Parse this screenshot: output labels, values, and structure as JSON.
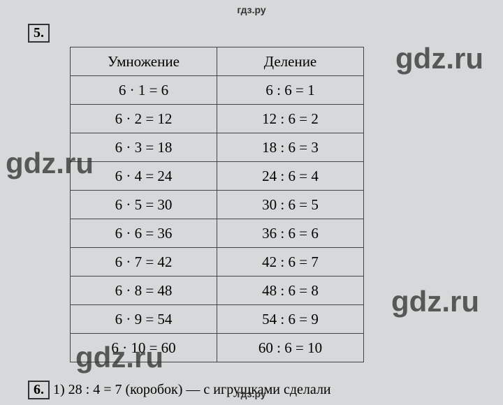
{
  "site": "гдз.ру",
  "watermark": "gdz.ru",
  "problem5": {
    "number": "5.",
    "headers": {
      "left": "Умножение",
      "right": "Деление"
    },
    "rows": [
      {
        "mult": "6 · 1 = 6",
        "div": "6 : 6 = 1"
      },
      {
        "mult": "6 · 2 = 12",
        "div": "12 : 6 = 2"
      },
      {
        "mult": "6 · 3 = 18",
        "div": "18 : 6 = 3"
      },
      {
        "mult": "6 · 4 = 24",
        "div": "24 : 6 = 4"
      },
      {
        "mult": "6 · 5 = 30",
        "div": "30 : 6 = 5"
      },
      {
        "mult": "6 · 6 = 36",
        "div": "36 : 6 = 6"
      },
      {
        "mult": "6 · 7 = 42",
        "div": "42 : 6 = 7"
      },
      {
        "mult": "6 · 8 = 48",
        "div": "48 : 6 = 8"
      },
      {
        "mult": "6 · 9 = 54",
        "div": "54 : 6 = 9"
      },
      {
        "mult": "6 · 10 = 60",
        "div": "60 : 6 = 10"
      }
    ]
  },
  "problem6": {
    "number": "6.",
    "text": "1) 28 : 4 = 7 (коробок) — с игрушками сделали"
  }
}
